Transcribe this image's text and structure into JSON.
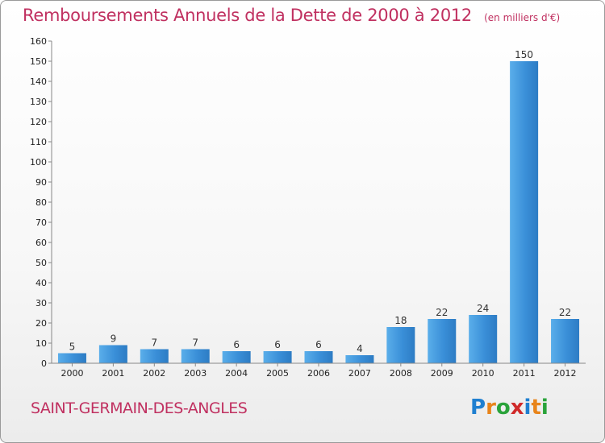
{
  "header": {
    "title": "Remboursements Annuels de la Dette de 2000 à 2012",
    "subtitle": "(en milliers d'€)"
  },
  "footer": {
    "commune": "SAINT-GERMAIN-DES-ANGLES",
    "logo_letters": [
      "P",
      "r",
      "o",
      "x",
      "i",
      "t",
      "i"
    ]
  },
  "colors": {
    "bar": "#3a8fd8",
    "title": "#c03060",
    "logo": [
      "#1f7fd0",
      "#e8841a",
      "#2aa33a",
      "#d02a2a",
      "#1f7fd0",
      "#e8841a",
      "#2aa33a"
    ]
  },
  "chart_data": {
    "type": "bar",
    "title": "Remboursements Annuels de la Dette de 2000 à 2012",
    "categories": [
      "2000",
      "2001",
      "2002",
      "2003",
      "2004",
      "2005",
      "2006",
      "2007",
      "2008",
      "2009",
      "2010",
      "2011",
      "2012"
    ],
    "values": [
      5,
      9,
      7,
      7,
      6,
      6,
      6,
      4,
      18,
      22,
      24,
      150,
      22
    ],
    "ylim": [
      0,
      160
    ],
    "yticks": [
      0,
      10,
      20,
      30,
      40,
      50,
      60,
      70,
      80,
      90,
      100,
      110,
      120,
      130,
      140,
      150,
      160
    ],
    "grid": false,
    "legend": "none"
  }
}
